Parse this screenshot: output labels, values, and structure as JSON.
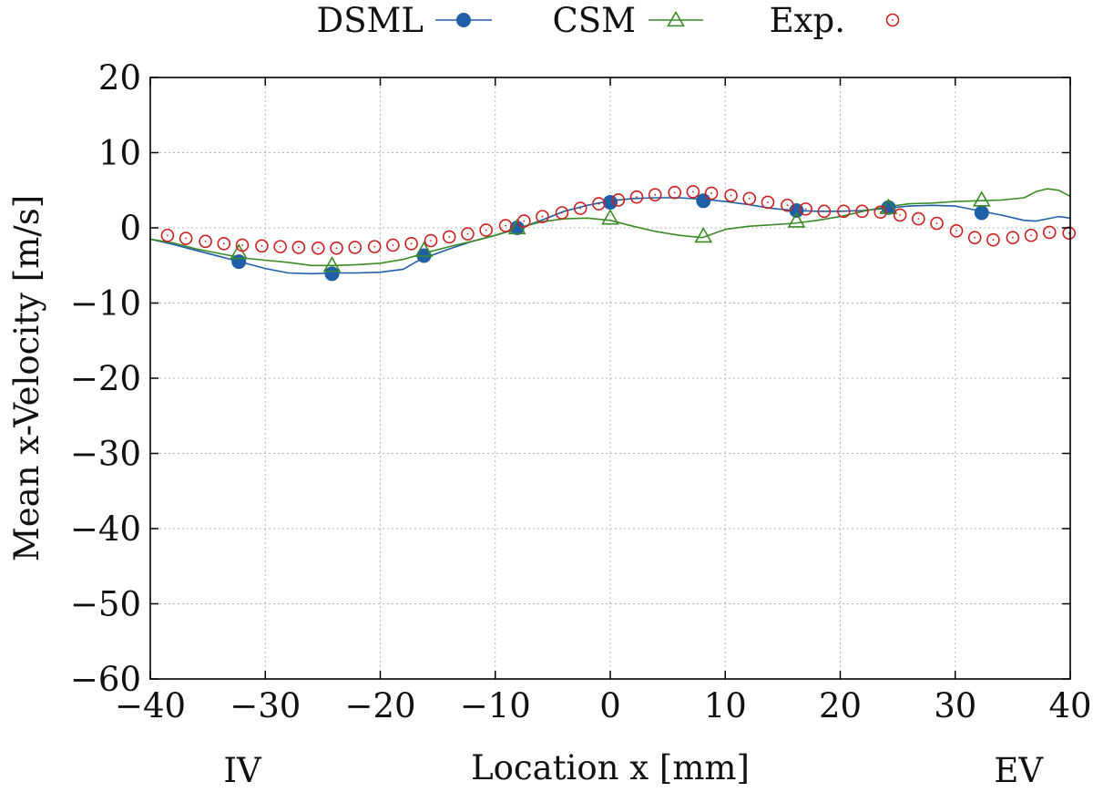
{
  "chart_data": {
    "type": "line",
    "xlabel": "Location x [mm]",
    "ylabel": "Mean x-Velocity [m/s]",
    "xlim": [
      -40,
      40
    ],
    "ylim": [
      -60,
      20
    ],
    "x_ticks": [
      -40,
      -30,
      -20,
      -10,
      0,
      10,
      20,
      30,
      40
    ],
    "y_ticks": [
      -60,
      -50,
      -40,
      -30,
      -20,
      -10,
      0,
      10,
      20
    ],
    "x_tick_labels": [
      "−40",
      "−30",
      "−20",
      "−10",
      "0",
      "10",
      "20",
      "30",
      "40"
    ],
    "y_tick_labels": [
      "−60",
      "−50",
      "−40",
      "−30",
      "−20",
      "−10",
      "0",
      "10",
      "20"
    ],
    "grid": true,
    "legend_position": "top",
    "annotations": [
      {
        "text": "IV",
        "x": -32
      },
      {
        "text": "EV",
        "x": 35.5
      }
    ],
    "series": [
      {
        "name": "DSML",
        "style": "line-filled-circle",
        "color": "#1f5fa8",
        "line_x": [
          -40,
          -38,
          -36,
          -34,
          -32,
          -30,
          -28,
          -26,
          -24,
          -22,
          -20,
          -18,
          -16.5,
          -14,
          -12,
          -10,
          -8,
          -6,
          -4,
          -2,
          0,
          2,
          4,
          6,
          8,
          10,
          12,
          14,
          16,
          18,
          20,
          22,
          24,
          26,
          28,
          30,
          32,
          34,
          36,
          37,
          38,
          39,
          40
        ],
        "line_y": [
          -1.5,
          -2.2,
          -3.0,
          -3.8,
          -4.6,
          -5.4,
          -6.0,
          -6.1,
          -6.0,
          -6.0,
          -5.9,
          -5.5,
          -4.2,
          -2.8,
          -1.8,
          -1.0,
          -0.1,
          1.0,
          2.2,
          3.0,
          3.6,
          3.9,
          4.0,
          4.0,
          3.8,
          3.5,
          3.1,
          2.6,
          2.3,
          2.2,
          2.2,
          2.3,
          2.6,
          2.9,
          3.0,
          2.9,
          2.3,
          1.7,
          1.0,
          0.9,
          1.2,
          1.5,
          1.3
        ],
        "marker_x": [
          -32.3,
          -24.2,
          -16.2,
          -8.1,
          0.0,
          8.1,
          16.2,
          24.2,
          32.3
        ],
        "marker_y": [
          -4.5,
          -6.1,
          -3.7,
          0.0,
          3.4,
          3.6,
          2.3,
          2.7,
          2.0
        ]
      },
      {
        "name": "CSM",
        "style": "line-open-triangle",
        "color": "#3b8a26",
        "line_x": [
          -40,
          -38,
          -36,
          -34,
          -32,
          -30,
          -28,
          -26,
          -24,
          -22,
          -20,
          -18,
          -16,
          -14,
          -12,
          -10,
          -8,
          -6,
          -4,
          -2,
          0,
          2,
          4,
          6,
          8,
          10,
          12,
          14,
          16,
          18,
          20,
          22,
          24,
          26,
          28,
          30,
          32,
          34,
          36,
          37,
          38,
          39,
          40
        ],
        "line_y": [
          -1.5,
          -2.0,
          -2.8,
          -3.4,
          -4.0,
          -4.3,
          -4.6,
          -5.0,
          -5.0,
          -4.9,
          -4.7,
          -4.2,
          -3.3,
          -2.5,
          -1.8,
          -1.0,
          0.0,
          0.8,
          1.2,
          1.3,
          1.0,
          0.2,
          -0.5,
          -1.0,
          -1.3,
          -0.2,
          0.2,
          0.4,
          0.6,
          1.0,
          1.5,
          2.2,
          2.8,
          3.2,
          3.3,
          3.5,
          3.6,
          3.7,
          4.0,
          4.8,
          5.2,
          5.0,
          4.2
        ],
        "marker_x": [
          -32.3,
          -24.2,
          -16.2,
          -8.1,
          0.0,
          8.1,
          16.2,
          24.2,
          32.3
        ],
        "marker_y": [
          -3.3,
          -5.0,
          -3.0,
          0.0,
          1.3,
          -1.1,
          0.9,
          2.7,
          3.7
        ]
      },
      {
        "name": "Exp.",
        "style": "open-circle",
        "color": "#cc1f1f",
        "x": [
          -38.5,
          -36.9,
          -35.2,
          -33.6,
          -32.0,
          -30.3,
          -28.7,
          -27.1,
          -25.4,
          -23.8,
          -22.2,
          -20.5,
          -18.9,
          -17.3,
          -15.6,
          -14.0,
          -12.4,
          -10.8,
          -9.1,
          -7.5,
          -5.9,
          -4.2,
          -2.6,
          -1.0,
          0.7,
          2.3,
          3.9,
          5.6,
          7.2,
          8.8,
          10.5,
          12.1,
          13.7,
          15.4,
          17.0,
          18.6,
          20.3,
          21.9,
          23.5,
          25.2,
          26.8,
          28.4,
          30.1,
          31.7,
          33.3,
          35.0,
          36.6,
          38.2,
          39.9
        ],
        "y": [
          -1.0,
          -1.4,
          -1.8,
          -2.1,
          -2.3,
          -2.4,
          -2.5,
          -2.6,
          -2.7,
          -2.7,
          -2.6,
          -2.5,
          -2.3,
          -2.1,
          -1.7,
          -1.2,
          -0.8,
          -0.3,
          0.3,
          0.9,
          1.5,
          2.0,
          2.6,
          3.2,
          3.7,
          4.1,
          4.4,
          4.7,
          4.8,
          4.6,
          4.3,
          3.9,
          3.4,
          3.0,
          2.5,
          2.2,
          2.2,
          2.2,
          2.1,
          1.7,
          1.2,
          0.6,
          -0.4,
          -1.3,
          -1.6,
          -1.3,
          -1.0,
          -0.6,
          -0.7
        ]
      }
    ]
  }
}
